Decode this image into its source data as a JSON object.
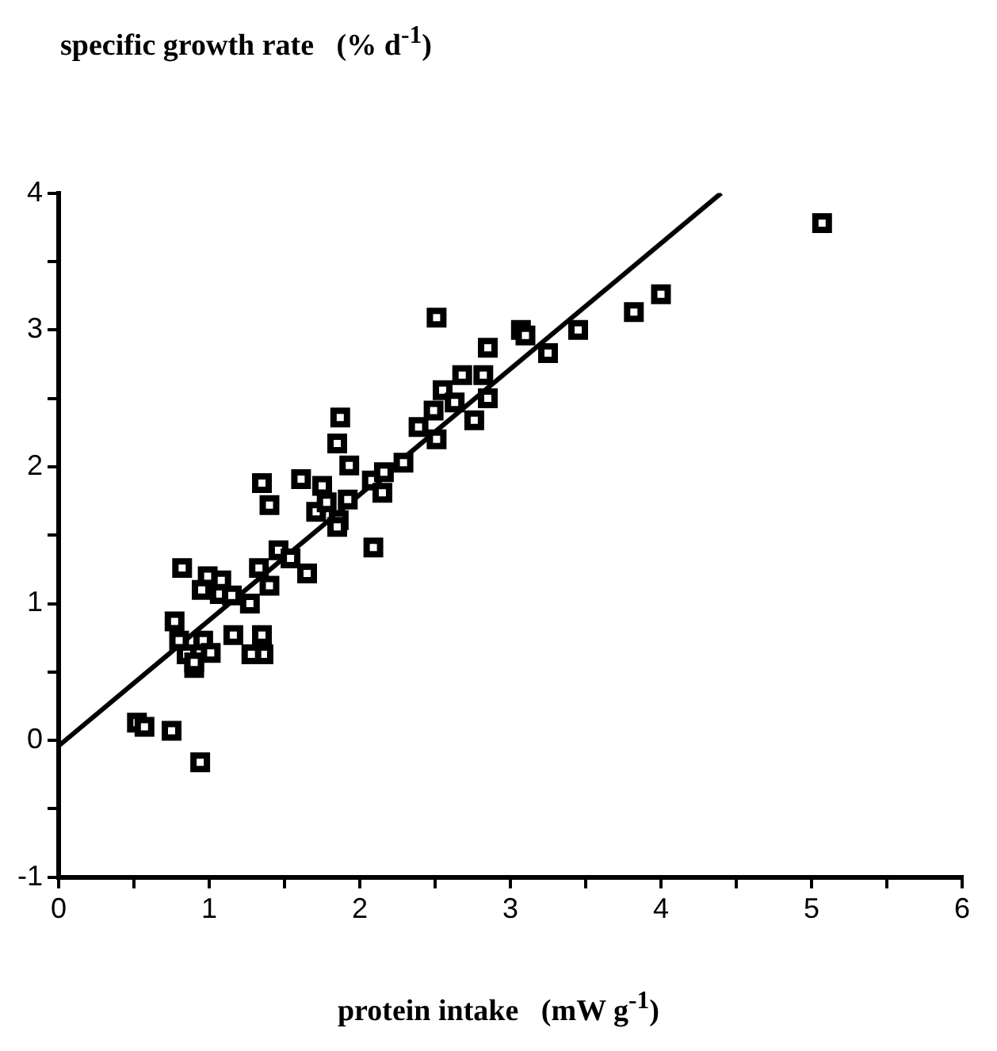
{
  "chart_data": {
    "type": "scatter",
    "ylabel": "specific growth rate   (% d$^{-1}$)",
    "xlabel": "protein intake   (mW g$^{-1}$)",
    "xlim": [
      0,
      6
    ],
    "ylim": [
      -1,
      4
    ],
    "xticks": [
      0,
      {
        "value": 0.5,
        "label": null
      },
      1,
      {
        "value": 1.5,
        "label": null
      },
      2,
      {
        "value": 2.5,
        "label": null
      },
      3,
      {
        "value": 3.5,
        "label": null
      },
      4,
      {
        "value": 4.5,
        "label": null
      },
      5,
      {
        "value": 5.5,
        "label": null
      },
      6
    ],
    "yticks": [
      -1,
      {
        "value": -0.5,
        "label": null
      },
      0,
      {
        "value": 0.5,
        "label": null
      },
      1,
      {
        "value": 1.5,
        "label": null
      },
      2,
      {
        "value": 2.5,
        "label": null
      },
      3,
      {
        "value": 3.5,
        "label": null
      },
      4
    ],
    "grid": false,
    "legend": false,
    "marker": "square",
    "series": [
      {
        "type": "scatter",
        "color": "#000000",
        "x": [
          0.52,
          0.57,
          0.75,
          0.94,
          0.82,
          0.77,
          0.8,
          0.85,
          0.9,
          0.9,
          0.96,
          1.01,
          0.99,
          0.95,
          1.08,
          1.07,
          1.16,
          1.15,
          1.27,
          1.35,
          1.36,
          1.28,
          1.33,
          1.4,
          1.35,
          1.4,
          1.46,
          1.54,
          1.65,
          1.61,
          1.75,
          1.71,
          1.78,
          1.86,
          1.85,
          1.92,
          1.93,
          1.85,
          1.87,
          2.09,
          2.08,
          2.15,
          2.16,
          2.29,
          2.39,
          2.49,
          2.51,
          2.51,
          2.55,
          2.63,
          2.68,
          2.76,
          2.82,
          2.85,
          2.85,
          3.07,
          3.1,
          3.25,
          3.45,
          3.82,
          4.0,
          5.07
        ],
        "values": [
          0.13,
          0.1,
          0.07,
          -0.16,
          1.26,
          0.87,
          0.73,
          0.63,
          0.53,
          0.57,
          0.73,
          0.64,
          1.2,
          1.1,
          1.17,
          1.07,
          0.77,
          1.06,
          1.0,
          0.77,
          0.63,
          0.63,
          1.26,
          1.13,
          1.88,
          1.72,
          1.39,
          1.33,
          1.22,
          1.91,
          1.86,
          1.67,
          1.74,
          1.61,
          1.56,
          1.76,
          2.01,
          2.17,
          2.36,
          1.41,
          1.9,
          1.81,
          1.96,
          2.03,
          2.29,
          2.41,
          2.2,
          3.09,
          2.56,
          2.47,
          2.67,
          2.34,
          2.67,
          2.5,
          2.87,
          3.0,
          2.96,
          2.83,
          3.0,
          3.13,
          3.26,
          3.78
        ]
      },
      {
        "type": "line",
        "color": "#000000",
        "x": [
          0,
          4.4
        ],
        "values": [
          -0.04,
          4.0
        ],
        "marker": "none",
        "line_style": "solid"
      }
    ]
  }
}
